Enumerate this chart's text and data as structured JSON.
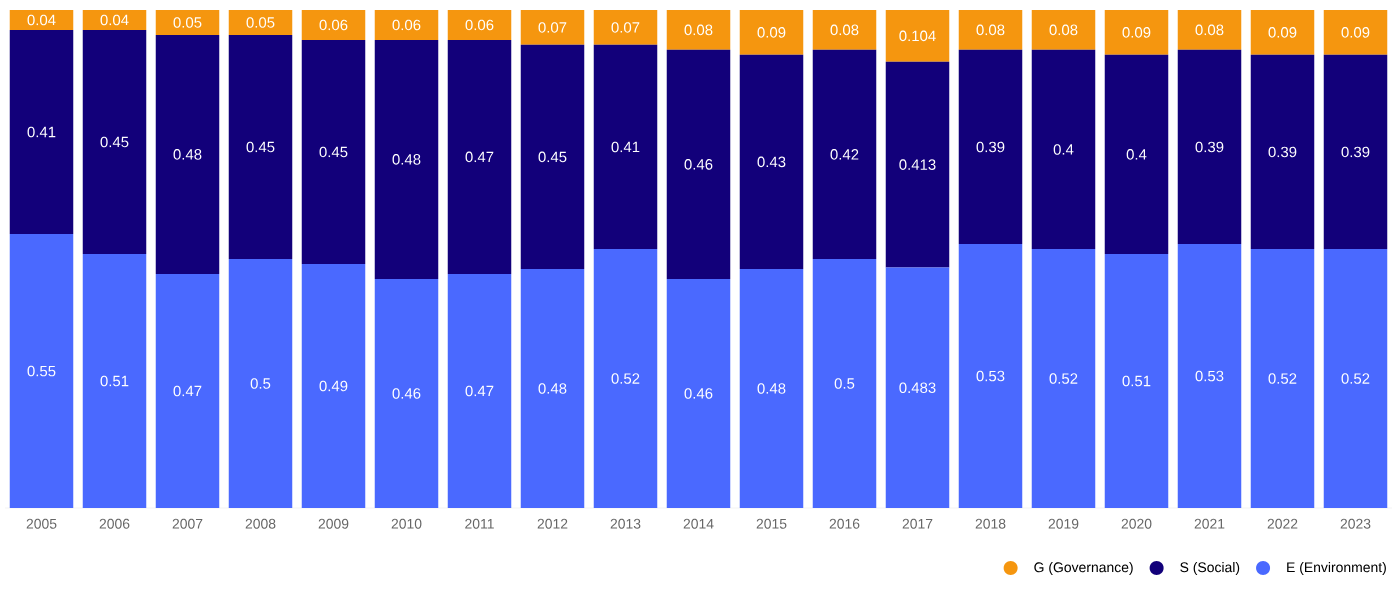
{
  "chart_data": {
    "type": "bar",
    "stacked": true,
    "data_labels": true,
    "legend": "bottom right",
    "categories": [
      "2005",
      "2006",
      "2007",
      "2008",
      "2009",
      "2010",
      "2011",
      "2012",
      "2013",
      "2014",
      "2015",
      "2016",
      "2017",
      "2018",
      "2019",
      "2020",
      "2021",
      "2022",
      "2023"
    ],
    "series": [
      {
        "name": "E (Environment)",
        "color": "#4a69ff",
        "values": [
          0.55,
          0.51,
          0.47,
          0.5,
          0.49,
          0.46,
          0.47,
          0.48,
          0.52,
          0.46,
          0.48,
          0.5,
          0.483,
          0.53,
          0.52,
          0.51,
          0.53,
          0.52,
          0.52
        ]
      },
      {
        "name": "S (Social)",
        "color": "#12007a",
        "values": [
          0.41,
          0.45,
          0.48,
          0.45,
          0.45,
          0.48,
          0.47,
          0.45,
          0.41,
          0.46,
          0.43,
          0.42,
          0.413,
          0.39,
          0.4,
          0.4,
          0.39,
          0.39,
          0.39
        ]
      },
      {
        "name": "G (Governance)",
        "color": "#f5960f",
        "values": [
          0.04,
          0.04,
          0.05,
          0.05,
          0.06,
          0.06,
          0.06,
          0.07,
          0.07,
          0.08,
          0.09,
          0.08,
          0.104,
          0.08,
          0.08,
          0.09,
          0.08,
          0.09,
          0.09
        ]
      }
    ]
  }
}
